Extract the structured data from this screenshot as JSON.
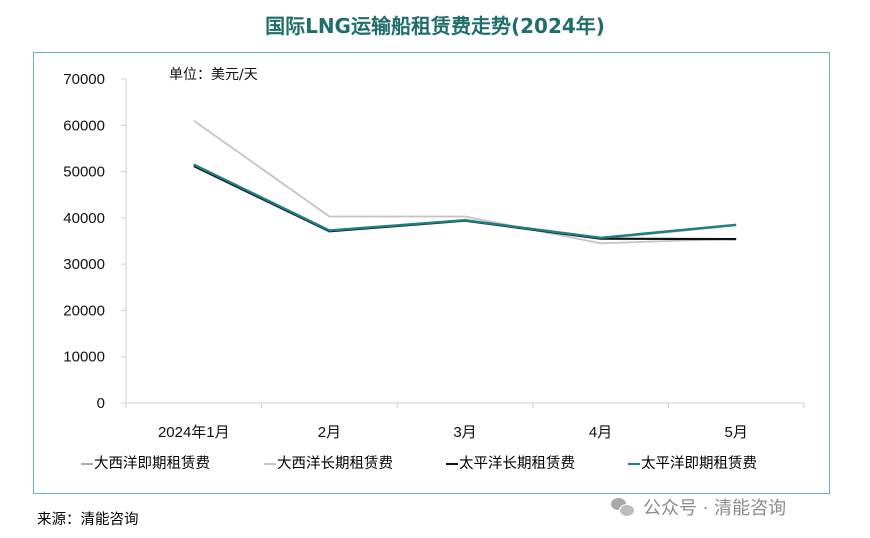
{
  "chart_data": {
    "type": "line",
    "title": "国际LNG运输船租赁费走势(2024年)",
    "unit_label": "单位：美元/天",
    "categories": [
      "2024年1月",
      "2月",
      "3月",
      "4月",
      "5月"
    ],
    "yticks": [
      "0",
      "10000",
      "20000",
      "30000",
      "40000",
      "50000",
      "60000",
      "70000"
    ],
    "ylim": [
      0,
      70000
    ],
    "grid": false,
    "legend_position": "bottom",
    "series": [
      {
        "name": "大西洋即期租赁费",
        "color": "#a9a9a9",
        "values": [
          51500,
          37200,
          39500,
          35500,
          38400
        ]
      },
      {
        "name": "大西洋长期租赁费",
        "color": "#c4c4c4",
        "values": [
          61000,
          40300,
          40300,
          34500,
          35500
        ]
      },
      {
        "name": "太平洋长期租赁费",
        "color": "#111111",
        "values": [
          51200,
          37100,
          39400,
          35500,
          35400
        ]
      },
      {
        "name": "太平洋即期租赁费",
        "color": "#1e7f84",
        "values": [
          51500,
          37300,
          39500,
          35700,
          38500
        ]
      }
    ]
  },
  "source": "来源：清能咨询",
  "watermark": "公众号 · 清能咨询"
}
